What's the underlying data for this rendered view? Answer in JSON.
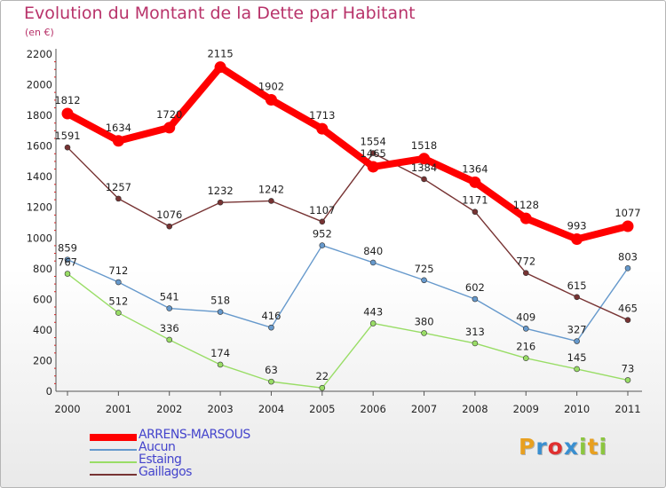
{
  "title": "Evolution du Montant de la Dette par Habitant",
  "subtitle": "(en €)",
  "chart_data": {
    "type": "line",
    "x": [
      "2000",
      "2001",
      "2002",
      "2003",
      "2004",
      "2005",
      "2006",
      "2007",
      "2008",
      "2009",
      "2010",
      "2011"
    ],
    "ylim": [
      0,
      2200
    ],
    "yticks": [
      "0",
      "200",
      "400",
      "600",
      "800",
      "1000",
      "1200",
      "1400",
      "1600",
      "1800",
      "2000",
      "2200"
    ],
    "grid": false,
    "legend_position": "bottom-left",
    "series": [
      {
        "name": "ARRENS-MARSOUS",
        "color": "#ff0000",
        "values": [
          1812,
          1634,
          1720,
          2115,
          1902,
          1713,
          1465,
          1518,
          1364,
          1128,
          993,
          1077
        ],
        "labels": [
          "1812",
          "1634",
          "1720",
          "2115",
          "1902",
          "1713",
          "1465",
          "1518",
          "1364",
          "1128",
          "993",
          "1077"
        ]
      },
      {
        "name": "Aucun",
        "color": "#6699cc",
        "values": [
          859,
          712,
          541,
          518,
          416,
          952,
          840,
          725,
          602,
          409,
          327,
          803
        ],
        "labels": [
          "859",
          "712",
          "541",
          "518",
          "416",
          "952",
          "840",
          "725",
          "602",
          "409",
          "327",
          "803"
        ]
      },
      {
        "name": "Estaing",
        "color": "#99dd66",
        "values": [
          767,
          512,
          336,
          174,
          63,
          22,
          443,
          380,
          313,
          216,
          145,
          73
        ],
        "labels": [
          "767",
          "512",
          "336",
          "174",
          "63",
          "22",
          "443",
          "380",
          "313",
          "216",
          "145",
          "73"
        ]
      },
      {
        "name": "Gaillagos",
        "color": "#773333",
        "values": [
          1591,
          1257,
          1076,
          1232,
          1242,
          1107,
          1554,
          1384,
          1171,
          772,
          615,
          465
        ],
        "labels": [
          "1591",
          "1257",
          "1076",
          "1232",
          "1242",
          "1107",
          "1554",
          "1384",
          "1171",
          "772",
          "615",
          "465"
        ]
      }
    ]
  },
  "logo": {
    "text": "Proxiti",
    "letters": [
      "P",
      "r",
      "o",
      "x",
      "i",
      "t",
      "i"
    ],
    "colors": [
      "#e8a020",
      "#3a8fd0",
      "#e03030",
      "#3a8fd0",
      "#8cc63f",
      "#e8a020",
      "#8cc63f"
    ]
  }
}
